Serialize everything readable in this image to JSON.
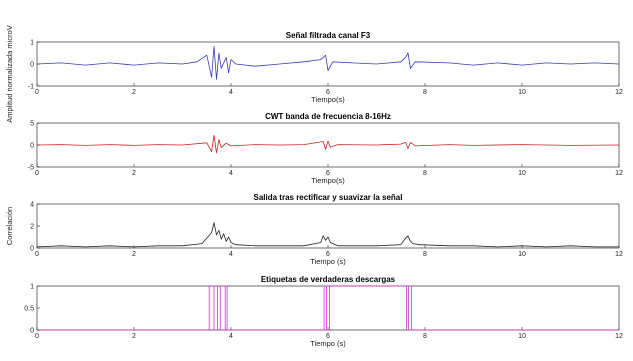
{
  "chart_data": [
    {
      "type": "line",
      "title": "Señal filtrada canal F3",
      "xlabel": "Tiempo(s)",
      "ylabel": "Amplitud normalizada microV",
      "xlim": [
        0,
        12
      ],
      "ylim": [
        -1,
        1
      ],
      "xticks": [
        "0",
        "2",
        "4",
        "6",
        "8",
        "10",
        "12"
      ],
      "yticks": [
        "-1",
        "0",
        "1"
      ],
      "color": "#3a3ab8",
      "grid": false,
      "series": [
        {
          "x": [
            0,
            0.5,
            1,
            1.5,
            2,
            2.5,
            3,
            3.3,
            3.5,
            3.6,
            3.65,
            3.7,
            3.75,
            3.8,
            3.9,
            3.95,
            4.0,
            4.1,
            4.5,
            5,
            5.5,
            5.85,
            5.95,
            6.0,
            6.1,
            6.5,
            7,
            7.5,
            7.6,
            7.65,
            7.7,
            7.8,
            8.5,
            9,
            9.5,
            10,
            10.5,
            11,
            11.5,
            12
          ],
          "y": [
            0,
            0.05,
            -0.05,
            0.05,
            -0.05,
            0.05,
            0.0,
            0.1,
            0.4,
            -0.6,
            0.8,
            -0.7,
            0.5,
            -0.2,
            0.3,
            -0.4,
            0.2,
            0.0,
            -0.1,
            0.0,
            0.1,
            0.2,
            0.4,
            -0.3,
            0.1,
            0.05,
            0.0,
            0.1,
            0.3,
            0.5,
            -0.2,
            0.1,
            0.05,
            -0.05,
            0.05,
            -0.05,
            0.05,
            0.0,
            0.05,
            0.0
          ]
        }
      ]
    },
    {
      "type": "line",
      "title": "CWT banda de frecuencia 8-16Hz",
      "xlabel": "Tiempo(s)",
      "ylabel": "",
      "xlim": [
        0,
        12
      ],
      "ylim": [
        -5,
        5
      ],
      "xticks": [
        "0",
        "2",
        "4",
        "6",
        "8",
        "10",
        "12"
      ],
      "yticks": [
        "-5",
        "0",
        "5"
      ],
      "color": "#cc2222",
      "grid": false,
      "series": [
        {
          "x": [
            0,
            0.5,
            1,
            1.5,
            2,
            2.5,
            3,
            3.5,
            3.6,
            3.65,
            3.7,
            3.75,
            3.8,
            3.9,
            4.0,
            4.5,
            5,
            5.5,
            5.9,
            5.95,
            6.0,
            6.05,
            6.2,
            7,
            7.5,
            7.6,
            7.65,
            7.7,
            7.8,
            8.5,
            9,
            10,
            11,
            12
          ],
          "y": [
            0,
            0.1,
            -0.1,
            0.1,
            -0.1,
            0.1,
            0.0,
            0.5,
            -1.5,
            2.2,
            -1.8,
            1.2,
            -0.6,
            0.4,
            -0.2,
            0.1,
            0.0,
            0.1,
            0.8,
            -1.0,
            0.9,
            -0.5,
            0.1,
            0.0,
            0.2,
            0.6,
            -0.8,
            0.6,
            -0.2,
            0.1,
            -0.1,
            0.1,
            -0.1,
            0.0
          ]
        }
      ]
    },
    {
      "type": "line",
      "title": "Salida tras rectificar y suavizar la señal",
      "xlabel": "Tiempo (s)",
      "ylabel": "Correlación",
      "xlim": [
        0,
        12
      ],
      "ylim": [
        0,
        4
      ],
      "xticks": [
        "0",
        "2",
        "4",
        "6",
        "8",
        "10",
        "12"
      ],
      "yticks": [
        "0",
        "2",
        "4"
      ],
      "color": "#222222",
      "grid": false,
      "series": [
        {
          "x": [
            0,
            0.5,
            1,
            1.5,
            2,
            2.5,
            3,
            3.4,
            3.5,
            3.6,
            3.65,
            3.7,
            3.75,
            3.8,
            3.85,
            3.9,
            3.95,
            4.0,
            4.1,
            4.5,
            5,
            5.5,
            5.85,
            5.9,
            5.95,
            6.0,
            6.05,
            6.2,
            7,
            7.5,
            7.6,
            7.65,
            7.7,
            7.75,
            7.9,
            8.5,
            9,
            9.5,
            10,
            10.5,
            11,
            11.5,
            12
          ],
          "y": [
            0.1,
            0.2,
            0.1,
            0.2,
            0.1,
            0.2,
            0.2,
            0.4,
            0.9,
            1.4,
            2.3,
            1.2,
            1.6,
            0.8,
            1.3,
            0.6,
            1.0,
            0.5,
            0.3,
            0.2,
            0.2,
            0.2,
            0.5,
            1.1,
            0.7,
            1.0,
            0.5,
            0.2,
            0.2,
            0.3,
            0.9,
            1.1,
            0.6,
            0.4,
            0.3,
            0.2,
            0.2,
            0.1,
            0.2,
            0.1,
            0.2,
            0.1,
            0.1
          ]
        }
      ]
    },
    {
      "type": "line",
      "title": "Etiquetas de verdaderas descargas",
      "xlabel": "Tiempo (s)",
      "ylabel": "",
      "xlim": [
        0,
        12
      ],
      "ylim": [
        0,
        1
      ],
      "xticks": [
        "0",
        "2",
        "4",
        "6",
        "8",
        "10",
        "12"
      ],
      "yticks": [
        "0",
        "0.5",
        "1"
      ],
      "color": "#cc33cc",
      "grid": false,
      "series": [
        {
          "x": [
            0,
            3.55,
            3.55,
            3.65,
            3.65,
            3.72,
            3.72,
            3.78,
            3.78,
            3.88,
            3.88,
            3.92,
            3.92,
            5.92,
            5.92,
            5.97,
            5.97,
            6.03,
            6.03,
            7.62,
            7.62,
            7.66,
            7.66,
            7.72,
            7.72,
            12
          ],
          "y": [
            0,
            0,
            1,
            1,
            0,
            0,
            1,
            1,
            0,
            0,
            1,
            1,
            0,
            0,
            1,
            1,
            0,
            0,
            1,
            1,
            0,
            0,
            1,
            1,
            0,
            0
          ]
        }
      ]
    }
  ]
}
